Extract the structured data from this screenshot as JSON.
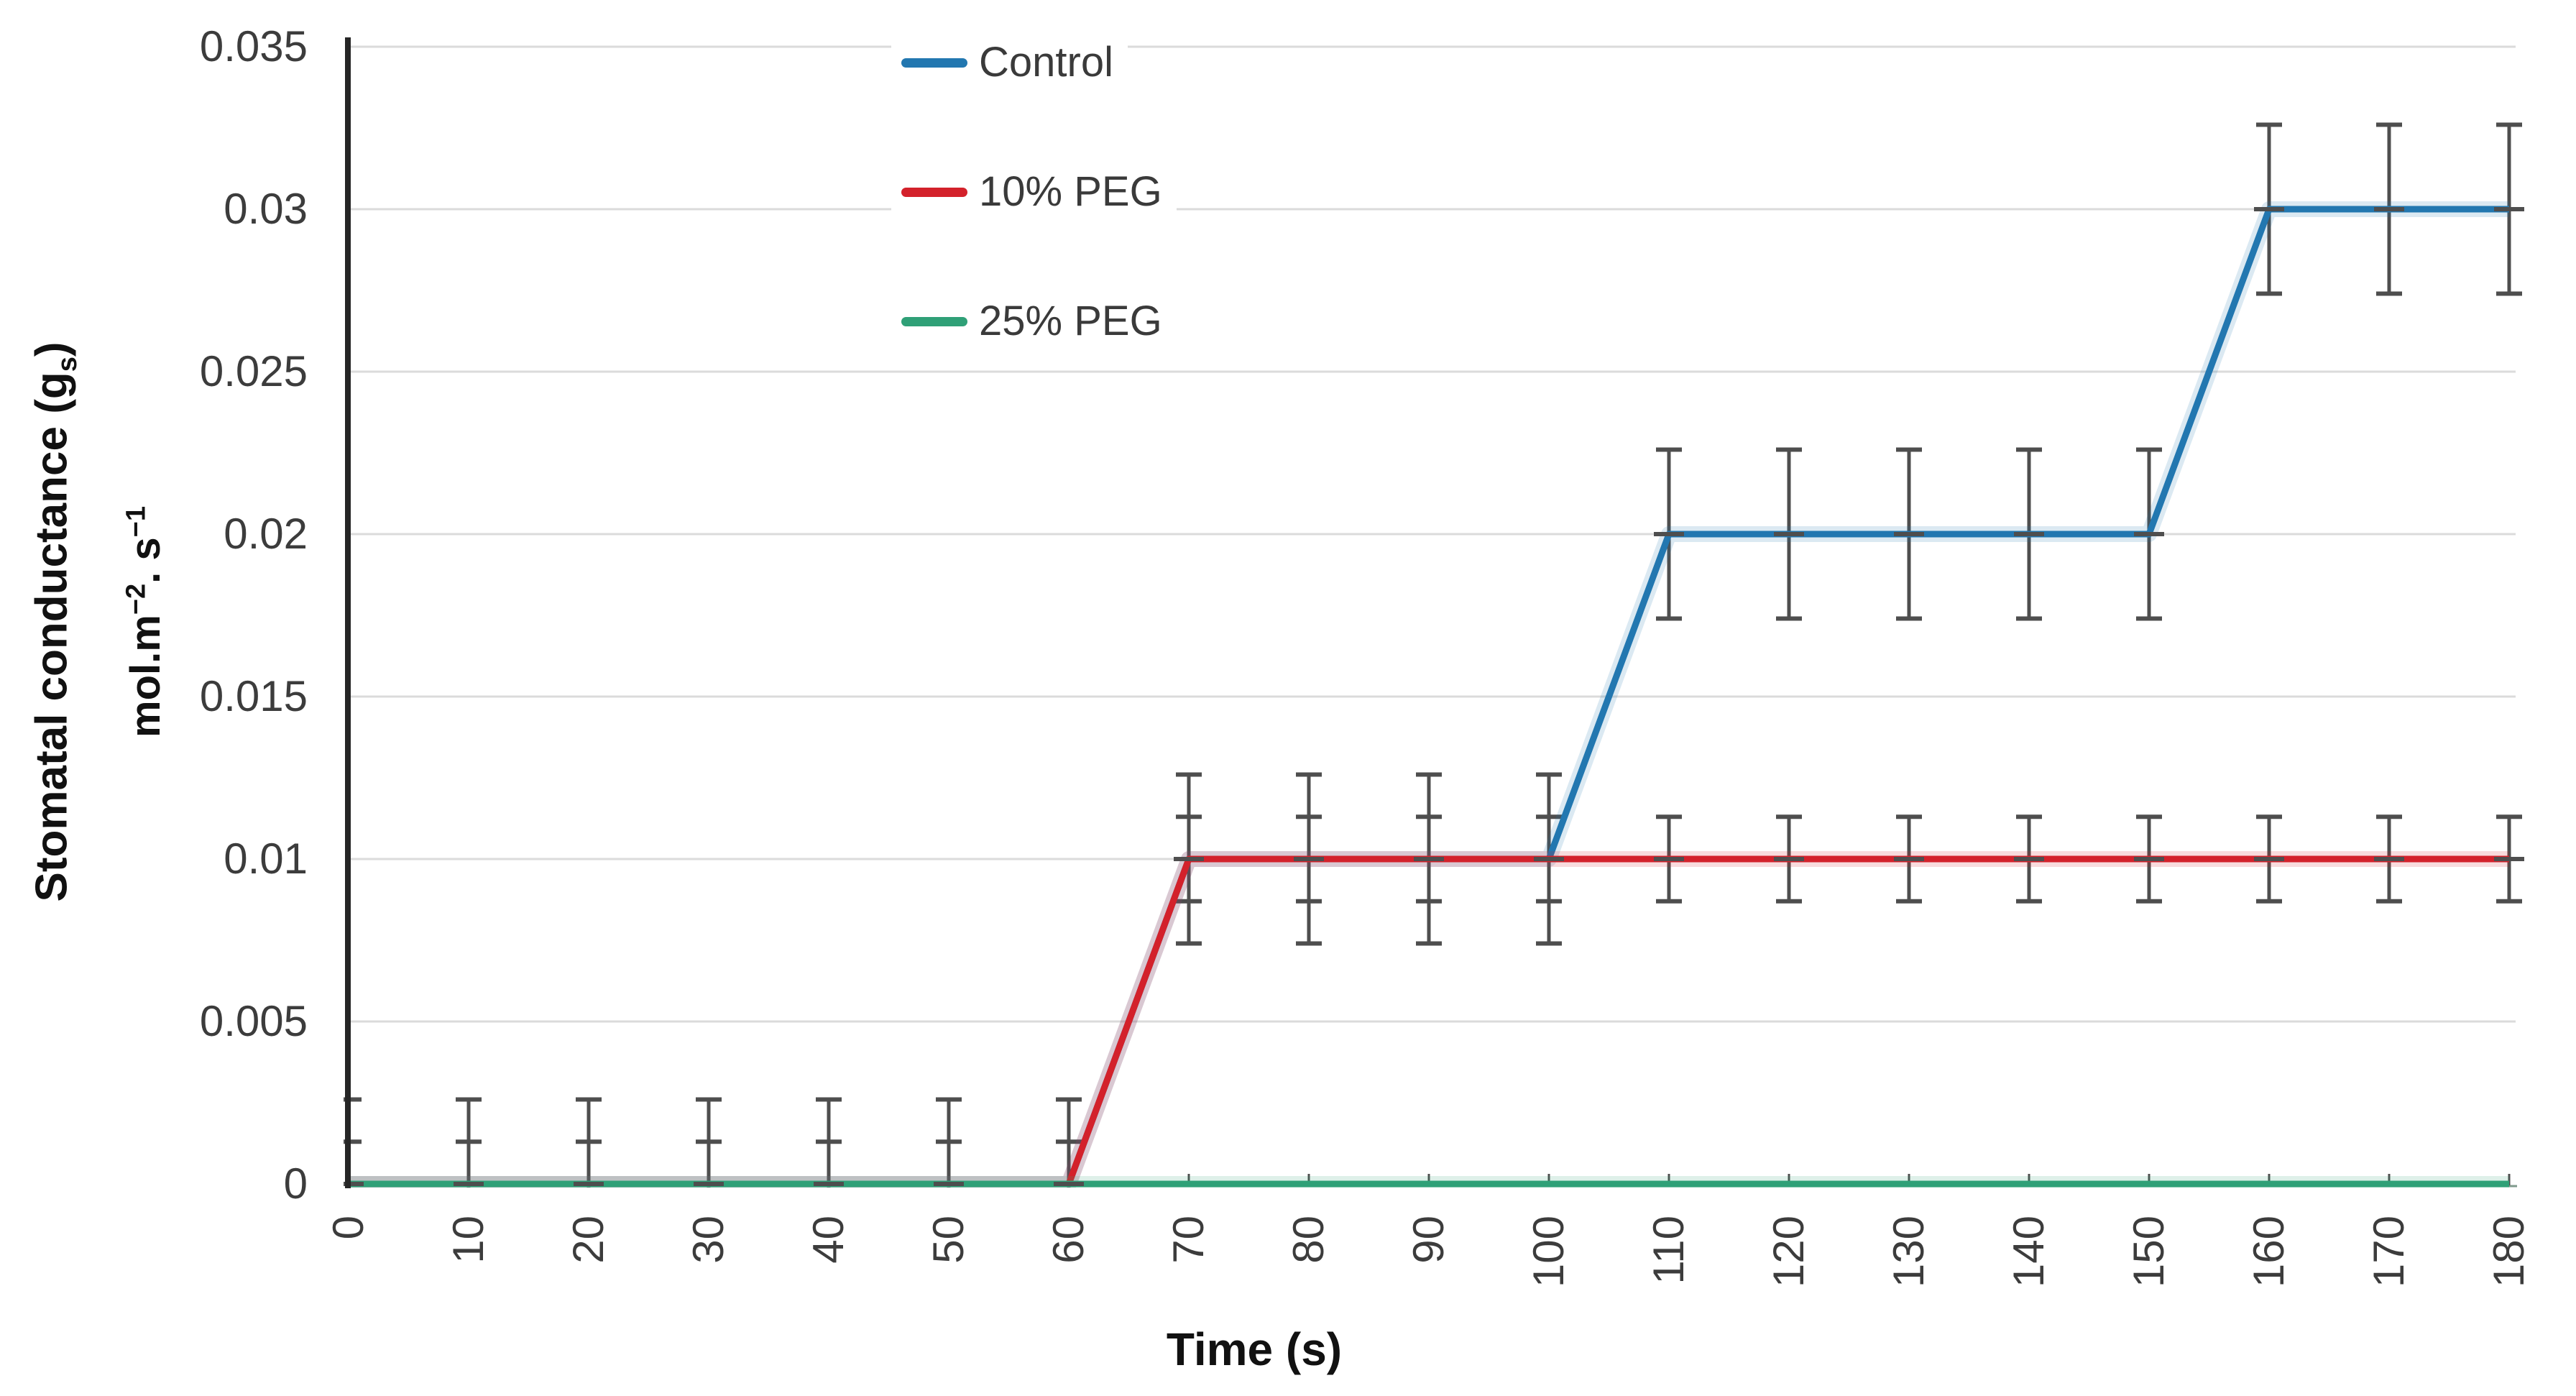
{
  "chart_data": {
    "type": "line",
    "xlabel": "Time (s)",
    "ylabel": {
      "line1_prefix": "Stomatal conductance (g",
      "line1_sub": "s",
      "line1_suffix": ")",
      "line2_parts": [
        {
          "text": "mol.m"
        },
        {
          "sup": "−2"
        },
        {
          "text": ". s"
        },
        {
          "sup": "−1"
        }
      ]
    },
    "x": [
      0,
      10,
      20,
      30,
      40,
      50,
      60,
      70,
      80,
      90,
      100,
      110,
      120,
      130,
      140,
      150,
      160,
      170,
      180
    ],
    "x_tick_labels": [
      "0",
      "10",
      "20",
      "30",
      "40",
      "50",
      "60",
      "70",
      "80",
      "90",
      "100",
      "110",
      "120",
      "130",
      "140",
      "150",
      "160",
      "170",
      "180"
    ],
    "y_axis": {
      "tick_values": [
        0,
        0.005,
        0.01,
        0.015,
        0.02,
        0.025,
        0.03,
        0.035
      ],
      "tick_labels": [
        "0",
        "0.005",
        "0.01",
        "0.015",
        "0.02",
        "0.025",
        "0.03",
        "0.035"
      ],
      "ylim": [
        0,
        0.035
      ]
    },
    "grid": "horizontal",
    "legend_position": "inside-top-left",
    "series": [
      {
        "name": "Control",
        "color": "#2277B0",
        "values": [
          0,
          0,
          0,
          0,
          0,
          0,
          0,
          0.01,
          0.01,
          0.01,
          0.01,
          0.02,
          0.02,
          0.02,
          0.02,
          0.02,
          0.03,
          0.03,
          0.03
        ],
        "error": 0.0026
      },
      {
        "name": "10% PEG",
        "color": "#D3212B",
        "values": [
          0,
          0,
          0,
          0,
          0,
          0,
          0,
          0.01,
          0.01,
          0.01,
          0.01,
          0.01,
          0.01,
          0.01,
          0.01,
          0.01,
          0.01,
          0.01,
          0.01
        ],
        "error": 0.0013
      },
      {
        "name": "25% PEG",
        "color": "#2FA077",
        "values": [
          0,
          0,
          0,
          0,
          0,
          0,
          0,
          0,
          0,
          0,
          0,
          0,
          0,
          0,
          0,
          0,
          0,
          0,
          0
        ],
        "error": 0
      }
    ],
    "colors": {
      "grid": "#DBDBDB",
      "error_bar": "#4E4E4E",
      "y_axis_line": "#262626",
      "x_axis_line": "#7F9A8C",
      "tick_text": "#3C3C3C"
    }
  }
}
